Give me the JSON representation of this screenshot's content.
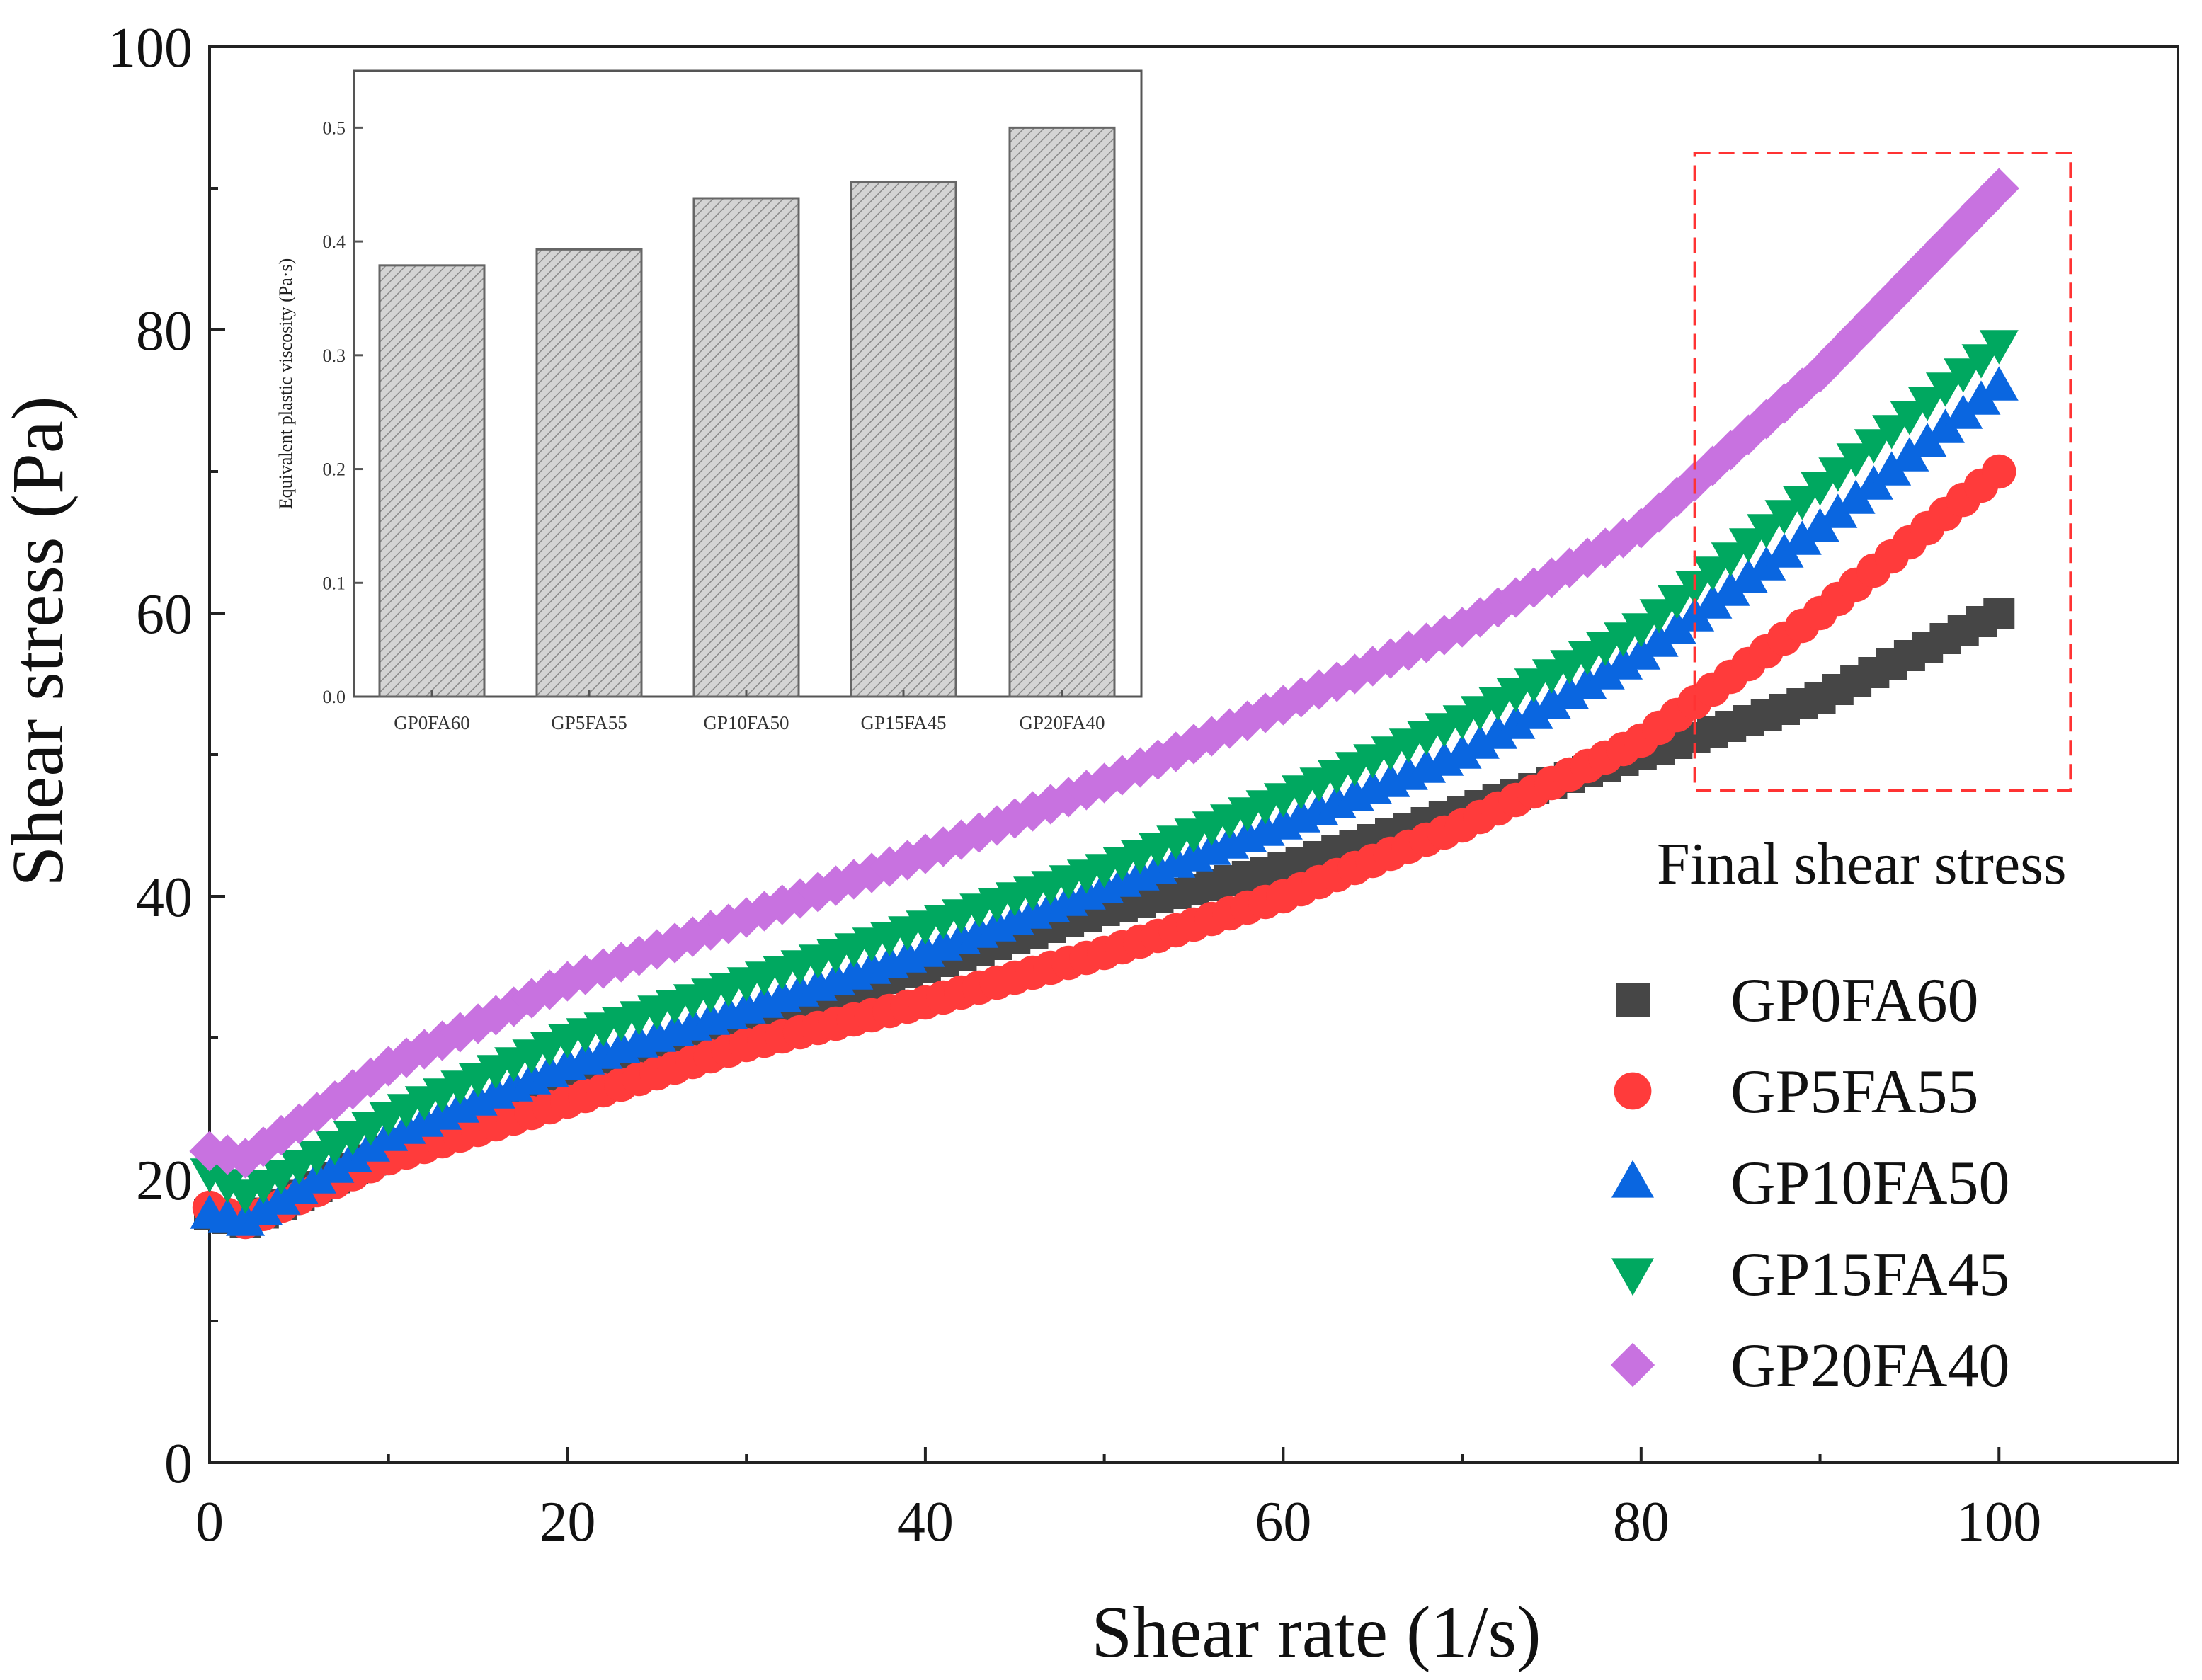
{
  "chart_data": [
    {
      "type": "scatter",
      "title": "",
      "xlabel": "Shear rate (1/s)",
      "ylabel": "Shear stress (Pa)",
      "xlim": [
        0,
        110
      ],
      "ylim": [
        0,
        100
      ],
      "xticks": [
        "0",
        "20",
        "40",
        "60",
        "80",
        "100"
      ],
      "yticks": [
        "0",
        "20",
        "40",
        "60",
        "80",
        "100"
      ],
      "grid": false,
      "legend_placement": "bottom-right",
      "annotation": {
        "text": "Final shear stress",
        "box_x": [
          83,
          104
        ],
        "box_y": [
          47.5,
          92.5
        ],
        "box_color": "#ff3333"
      },
      "x": [
        0,
        2,
        10,
        20,
        30,
        40,
        50,
        60,
        70,
        80,
        90,
        100
      ],
      "series": [
        {
          "name": "GP0FA60",
          "marker": "square",
          "color": "#464646",
          "values": [
            17.5,
            17,
            22,
            27,
            31,
            35,
            39,
            42,
            46,
            50,
            54,
            60
          ]
        },
        {
          "name": "GP5FA55",
          "marker": "circle",
          "color": "#ff3b3b",
          "values": [
            18,
            17,
            21.5,
            25.5,
            29.5,
            32.5,
            36,
            40,
            45,
            51,
            60,
            70
          ]
        },
        {
          "name": "GP10FA50",
          "marker": "triangle-up",
          "color": "#0a66e0",
          "values": [
            17.5,
            17,
            23,
            28,
            32,
            36,
            40.5,
            45,
            50,
            57,
            66,
            76
          ]
        },
        {
          "name": "GP15FA45",
          "marker": "triangle-down",
          "color": "#00a860",
          "values": [
            20.5,
            19,
            24.5,
            30,
            34,
            38,
            42,
            47,
            52.5,
            59,
            69,
            79
          ]
        },
        {
          "name": "GP20FA40",
          "marker": "diamond",
          "color": "#c872e0",
          "values": [
            22,
            21.5,
            28,
            34,
            38.5,
            43,
            48,
            53.5,
            59,
            66,
            77,
            90
          ]
        }
      ]
    },
    {
      "type": "bar",
      "title": "",
      "xlabel": "",
      "ylabel": "Equivalent plastic viscosity (Pa·s)",
      "ylim": [
        0,
        0.55
      ],
      "yticks": [
        "0.0",
        "0.1",
        "0.2",
        "0.3",
        "0.4",
        "0.5"
      ],
      "categories": [
        "GP0FA60",
        "GP5FA55",
        "GP10FA50",
        "GP15FA45",
        "GP20FA40"
      ],
      "values": [
        0.379,
        0.393,
        0.438,
        0.452,
        0.5
      ],
      "fill": "hatched-gray"
    }
  ]
}
